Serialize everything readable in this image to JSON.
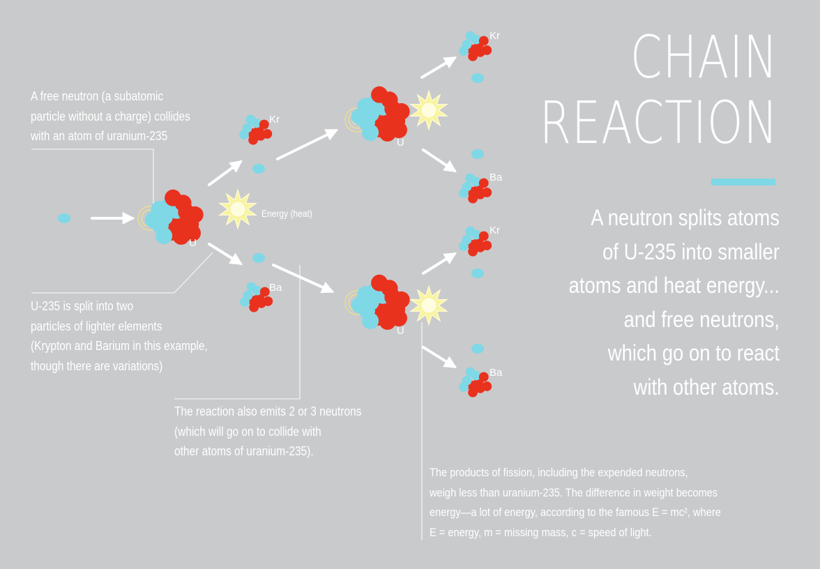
{
  "title": {
    "line1": "CHAIN",
    "line2": "REACTION"
  },
  "subtitle": {
    "lines": [
      "A neutron splits atoms",
      "of U-235 into smaller",
      "atoms and heat energy...",
      "and free neutrons,",
      "which go on to react",
      "with other atoms."
    ]
  },
  "notes": {
    "free_neutron": [
      "A free neutron (a subatomic",
      "particle without a charge) collides",
      "with an atom of uranium-235"
    ],
    "split": [
      "U-235 is split into two",
      "particles of lighter elements",
      "(Krypton and Barium in this example,",
      "though there are variations)"
    ],
    "emits": [
      "The reaction also emits 2 or 3 neutrons",
      "(which will go on to collide with",
      "other atoms of uranium-235)."
    ],
    "fission": [
      "The products of fission, including the expended neutrons,",
      "weigh less than uranium-235. The difference in weight becomes",
      "energy—a lot of energy, according to the famous E = mc², where",
      "E = energy, m = missing mass, c = speed of light."
    ]
  },
  "labels": {
    "energy": "Energy (heat)",
    "uranium": "U",
    "krypton": "Kr",
    "barium": "Ba"
  },
  "colors": {
    "background": "#c9cacc",
    "neutron": "#7fd8e6",
    "proton": "#e8321e",
    "energy_burst": "#f7f3a0",
    "accent_bar": "#7fd8e6",
    "text": "#ffffff"
  }
}
